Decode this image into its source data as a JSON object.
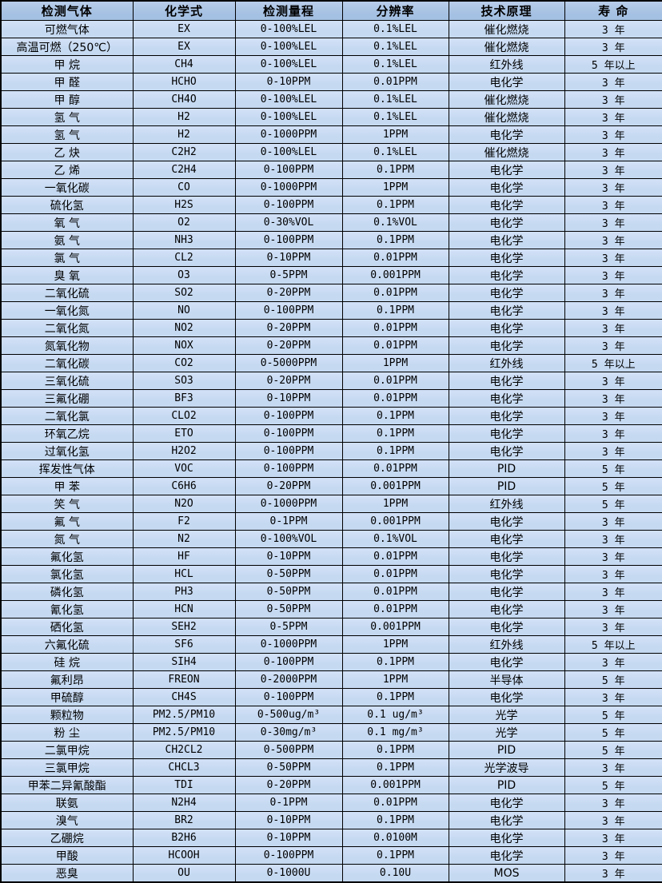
{
  "colors": {
    "header_bg": "#a4c0e2",
    "row_bg": "#c5d9f1",
    "border": "#000000",
    "text": "#000000"
  },
  "table": {
    "columns": [
      {
        "key": "gas",
        "label": "检测气体"
      },
      {
        "key": "formula",
        "label": "化学式"
      },
      {
        "key": "range",
        "label": "检测量程"
      },
      {
        "key": "resolution",
        "label": "分辨率"
      },
      {
        "key": "principle",
        "label": "技术原理"
      },
      {
        "key": "lifespan",
        "label": "寿 命"
      }
    ],
    "rows": [
      [
        "可燃气体",
        "EX",
        "0-100%LEL",
        "0.1%LEL",
        "催化燃烧",
        "3 年"
      ],
      [
        "高温可燃（250℃）",
        "EX",
        "0-100%LEL",
        "0.1%LEL",
        "催化燃烧",
        "3 年"
      ],
      [
        "甲 烷",
        "CH4",
        "0-100%LEL",
        "0.1%LEL",
        "红外线",
        "5 年以上"
      ],
      [
        "甲 醛",
        "HCHO",
        "0-10PPM",
        "0.01PPM",
        "电化学",
        "3 年"
      ],
      [
        "甲 醇",
        "CH4O",
        "0-100%LEL",
        "0.1%LEL",
        "催化燃烧",
        "3 年"
      ],
      [
        "氢 气",
        "H2",
        "0-100%LEL",
        "0.1%LEL",
        "催化燃烧",
        "3 年"
      ],
      [
        "氢 气",
        "H2",
        "0-1000PPM",
        "1PPM",
        "电化学",
        "3 年"
      ],
      [
        "乙 炔",
        "C2H2",
        "0-100%LEL",
        "0.1%LEL",
        "催化燃烧",
        "3 年"
      ],
      [
        "乙 烯",
        "C2H4",
        "0-100PPM",
        "0.1PPM",
        "电化学",
        "3 年"
      ],
      [
        "一氧化碳",
        "CO",
        "0-1000PPM",
        "1PPM",
        "电化学",
        "3 年"
      ],
      [
        "硫化氢",
        "H2S",
        "0-100PPM",
        "0.1PPM",
        "电化学",
        "3 年"
      ],
      [
        "氧 气",
        "O2",
        "0-30%VOL",
        "0.1%VOL",
        "电化学",
        "3 年"
      ],
      [
        "氨 气",
        "NH3",
        "0-100PPM",
        "0.1PPM",
        "电化学",
        "3 年"
      ],
      [
        "氯 气",
        "CL2",
        "0-10PPM",
        "0.01PPM",
        "电化学",
        "3 年"
      ],
      [
        "臭 氧",
        "O3",
        "0-5PPM",
        "0.001PPM",
        "电化学",
        "3 年"
      ],
      [
        "二氧化硫",
        "SO2",
        "0-20PPM",
        "0.01PPM",
        "电化学",
        "3 年"
      ],
      [
        "一氧化氮",
        "NO",
        "0-100PPM",
        "0.1PPM",
        "电化学",
        "3 年"
      ],
      [
        "二氧化氮",
        "NO2",
        "0-20PPM",
        "0.01PPM",
        "电化学",
        "3 年"
      ],
      [
        "氮氧化物",
        "NOX",
        "0-20PPM",
        "0.01PPM",
        "电化学",
        "3 年"
      ],
      [
        "二氧化碳",
        "CO2",
        "0-5000PPM",
        "1PPM",
        "红外线",
        "5 年以上"
      ],
      [
        "三氧化硫",
        "SO3",
        "0-20PPM",
        "0.01PPM",
        "电化学",
        "3 年"
      ],
      [
        "三氟化硼",
        "BF3",
        "0-10PPM",
        "0.01PPM",
        "电化学",
        "3 年"
      ],
      [
        "二氧化氯",
        "CLO2",
        "0-100PPM",
        "0.1PPM",
        "电化学",
        "3 年"
      ],
      [
        "环氧乙烷",
        "ETO",
        "0-100PPM",
        "0.1PPM",
        "电化学",
        "3 年"
      ],
      [
        "过氧化氢",
        "H2O2",
        "0-100PPM",
        "0.1PPM",
        "电化学",
        "3 年"
      ],
      [
        "挥发性气体",
        "VOC",
        "0-100PPM",
        "0.01PPM",
        "PID",
        "5 年"
      ],
      [
        "甲 苯",
        "C6H6",
        "0-20PPM",
        "0.001PPM",
        "PID",
        "5 年"
      ],
      [
        "笑 气",
        "N2O",
        "0-1000PPM",
        "1PPM",
        "红外线",
        "5 年"
      ],
      [
        "氟 气",
        "F2",
        "0-1PPM",
        "0.001PPM",
        "电化学",
        "3 年"
      ],
      [
        "氮 气",
        "N2",
        "0-100%VOL",
        "0.1%VOL",
        "电化学",
        "3 年"
      ],
      [
        "氟化氢",
        "HF",
        "0-10PPM",
        "0.01PPM",
        "电化学",
        "3 年"
      ],
      [
        "氯化氢",
        "HCL",
        "0-50PPM",
        "0.01PPM",
        "电化学",
        "3 年"
      ],
      [
        "磷化氢",
        "PH3",
        "0-50PPM",
        "0.01PPM",
        "电化学",
        "3 年"
      ],
      [
        "氰化氢",
        "HCN",
        "0-50PPM",
        "0.01PPM",
        "电化学",
        "3 年"
      ],
      [
        "硒化氢",
        "SEH2",
        "0-5PPM",
        "0.001PPM",
        "电化学",
        "3 年"
      ],
      [
        "六氟化硫",
        "SF6",
        "0-1000PPM",
        "1PPM",
        "红外线",
        "5 年以上"
      ],
      [
        "硅 烷",
        "SIH4",
        "0-100PPM",
        "0.1PPM",
        "电化学",
        "3 年"
      ],
      [
        "氟利昂",
        "FREON",
        "0-2000PPM",
        "1PPM",
        "半导体",
        "5 年"
      ],
      [
        "甲硫醇",
        "CH4S",
        "0-100PPM",
        "0.1PPM",
        "电化学",
        "3 年"
      ],
      [
        "颗粒物",
        "PM2.5/PM10",
        "0-500ug/m³",
        "0.1 ug/m³",
        "光学",
        "5 年"
      ],
      [
        "粉 尘",
        "PM2.5/PM10",
        "0-30mg/m³",
        "0.1 mg/m³",
        "光学",
        "5 年"
      ],
      [
        "二氯甲烷",
        "CH2CL2",
        "0-500PPM",
        "0.1PPM",
        "PID",
        "5 年"
      ],
      [
        "三氯甲烷",
        "CHCL3",
        "0-50PPM",
        "0.1PPM",
        "光学波导",
        "3 年"
      ],
      [
        "甲苯二异氰酸酯",
        "TDI",
        "0-20PPM",
        "0.001PPM",
        "PID",
        "5 年"
      ],
      [
        "联氨",
        "N2H4",
        "0-1PPM",
        "0.01PPM",
        "电化学",
        "3 年"
      ],
      [
        "溴气",
        "BR2",
        "0-10PPM",
        "0.1PPM",
        "电化学",
        "3 年"
      ],
      [
        "乙硼烷",
        "B2H6",
        "0-10PPM",
        "0.0100M",
        "电化学",
        "3 年"
      ],
      [
        "甲酸",
        "HCOOH",
        "0-100PPM",
        "0.1PPM",
        "电化学",
        "3 年"
      ],
      [
        "恶臭",
        "OU",
        "0-1000U",
        "0.10U",
        "MOS",
        "3 年"
      ]
    ]
  }
}
